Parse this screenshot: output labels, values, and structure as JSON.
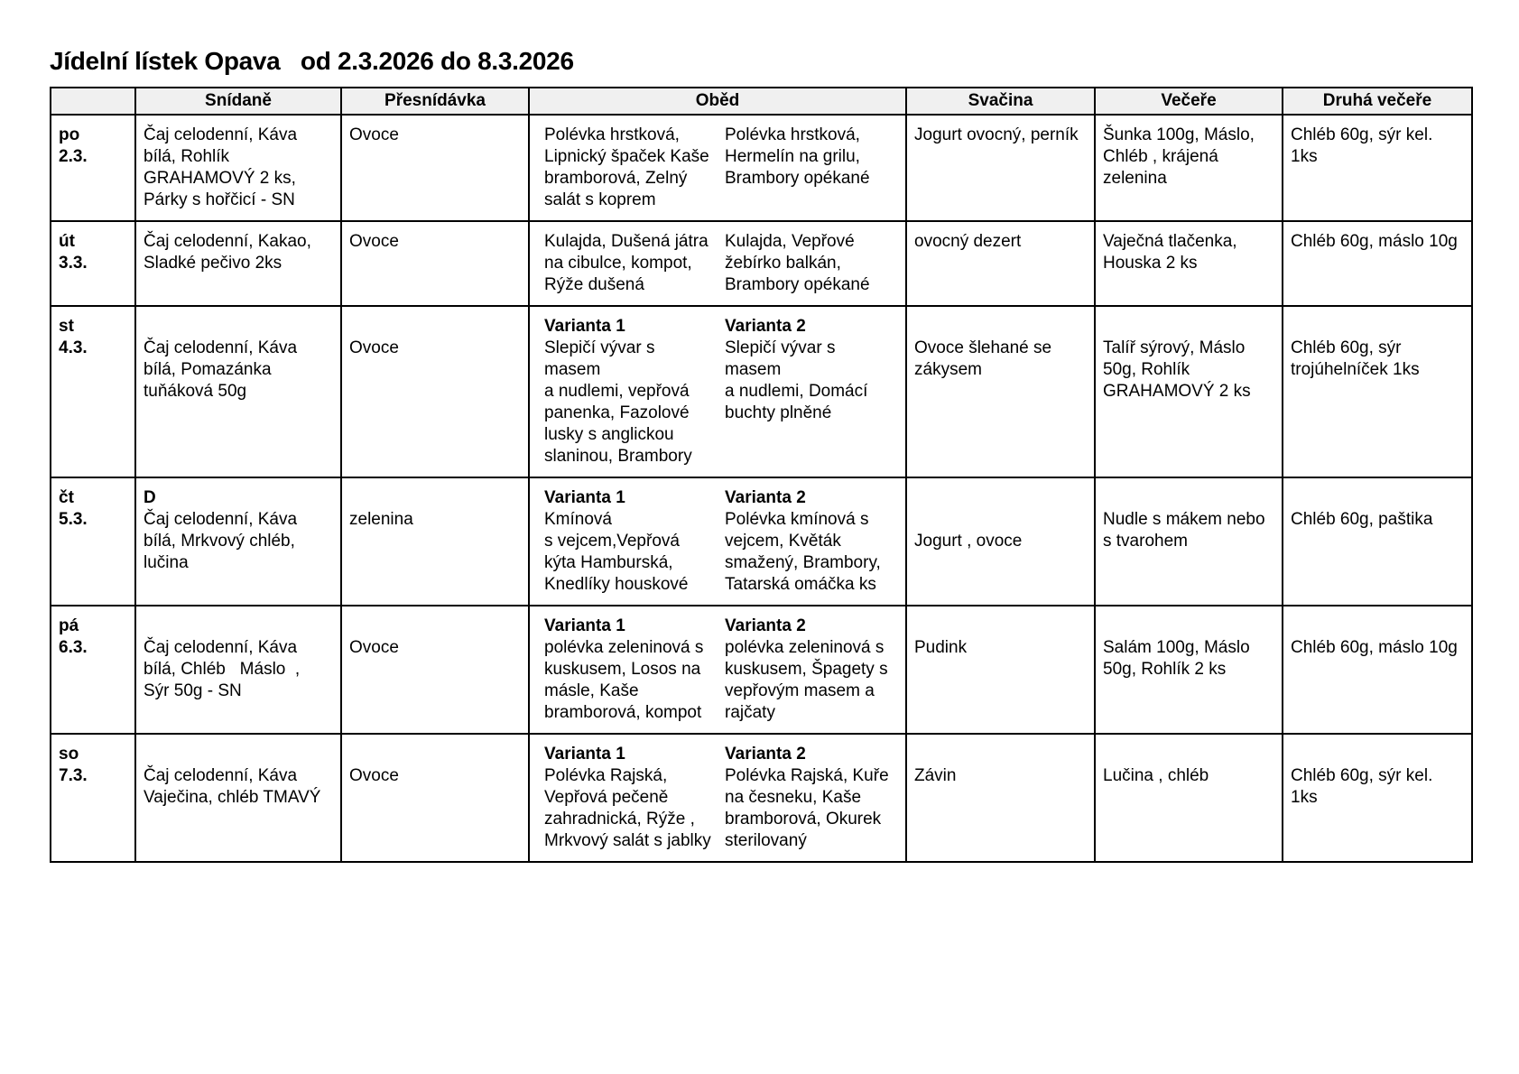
{
  "page": {
    "title": "Jídelní lístek Opava   od 2.3.2026 do 8.3.2026"
  },
  "colors": {
    "header_bg": "#f0f0f0",
    "border": "#000000",
    "text": "#000000",
    "page_bg": "#ffffff"
  },
  "table": {
    "columns": {
      "day": "",
      "snidane": "Snídaně",
      "presnidavka": "Přesnídávka",
      "obed": "Oběd",
      "svacina": "Svačina",
      "vecere": "Večeře",
      "druha_vecere": "Druhá večeře"
    },
    "rows": [
      {
        "day": {
          "abbr": "po",
          "date": "2.3."
        },
        "snidane": {
          "label": "",
          "text": "Čaj celodenní, Káva\nbílá, Rohlík\nGRAHAMOVÝ 2 ks,\nPárky s hořčicí - SN"
        },
        "presnidavka": "Ovoce",
        "obed": [
          {
            "label": "",
            "text": "Polévka hrstková,\nLipnický špaček Kaše\nbramborová, Zelný\nsalát s koprem"
          },
          {
            "label": "",
            "text": "Polévka hrstková,\nHermelín na grilu,\nBrambory opékané"
          }
        ],
        "svacina": "Jogurt ovocný, perník",
        "vecere": "Šunka 100g, Máslo,\nChléb , krájená\nzelenina",
        "druha_vecere": "Chléb 60g, sýr kel. 1ks"
      },
      {
        "day": {
          "abbr": "út",
          "date": "3.3."
        },
        "snidane": {
          "label": "",
          "text": "Čaj celodenní, Kakao,\nSladké pečivo 2ks"
        },
        "presnidavka": "Ovoce",
        "obed": [
          {
            "label": "",
            "text": "Kulajda, Dušená játra\nna cibulce, kompot,\nRýže dušená"
          },
          {
            "label": "",
            "text": "Kulajda, Vepřové\nžebírko balkán,\nBrambory opékané"
          }
        ],
        "svacina": "ovocný dezert",
        "vecere": "Vaječná tlačenka,\nHouska 2 ks",
        "druha_vecere": "Chléb 60g, máslo 10g"
      },
      {
        "day": {
          "abbr": "st",
          "date": "4.3."
        },
        "snidane": {
          "label": "",
          "text": "\nČaj celodenní, Káva\nbílá, Pomazánka\ntuňáková 50g"
        },
        "presnidavka": "\nOvoce",
        "obed": [
          {
            "label": "Varianta 1",
            "text": "Slepičí vývar s masem\na nudlemi, vepřová\npanenka, Fazolové\nlusky s anglickou\nslaninou, Brambory"
          },
          {
            "label": "Varianta 2",
            "text": "Slepičí vývar s masem\na nudlemi, Domácí\nbuchty plněné"
          }
        ],
        "svacina": "\nOvoce šlehané se\nzákysem",
        "vecere": "\nTalíř sýrový, Máslo\n50g, Rohlík\nGRAHAMOVÝ 2 ks",
        "druha_vecere": "\nChléb 60g, sýr\ntrojúhelníček 1ks"
      },
      {
        "day": {
          "abbr": "čt",
          "date": "5.3."
        },
        "snidane": {
          "label": "D",
          "text": "Čaj celodenní, Káva\nbílá, Mrkvový chléb,\nlučina"
        },
        "presnidavka": "\nzelenina",
        "obed": [
          {
            "label": "Varianta 1",
            "text": "Kmínová\ns vejcem,Vepřová\nkýta Hamburská,\nKnedlíky houskové"
          },
          {
            "label": "Varianta 2",
            "text": "Polévka kmínová s\nvejcem, Květák\nsmažený, Brambory,\nTatarská omáčka ks"
          }
        ],
        "svacina": "\n\nJogurt , ovoce",
        "vecere": "\nNudle s mákem nebo\ns tvarohem",
        "druha_vecere": "\nChléb 60g, paštika"
      },
      {
        "day": {
          "abbr": "pá",
          "date": "6.3."
        },
        "snidane": {
          "label": "",
          "text": "\nČaj celodenní, Káva\nbílá, Chléb   Máslo  ,\nSýr 50g - SN"
        },
        "presnidavka": "\nOvoce",
        "obed": [
          {
            "label": "Varianta 1",
            "text": "polévka zeleninová s\nkuskusem, Losos na\nmásle, Kaše\nbramborová, kompot"
          },
          {
            "label": "Varianta 2",
            "text": "polévka zeleninová s\nkuskusem, Špagety s\nvepřovým masem a\nrajčaty"
          }
        ],
        "svacina": "\nPudink",
        "vecere": "\nSalám 100g, Máslo\n50g, Rohlík 2 ks",
        "druha_vecere": "\nChléb 60g, máslo 10g"
      },
      {
        "day": {
          "abbr": "so",
          "date": "7.3."
        },
        "snidane": {
          "label": "",
          "text": "\nČaj celodenní, Káva\nVaječina, chléb TMAVÝ"
        },
        "presnidavka": "\nOvoce",
        "obed": [
          {
            "label": "Varianta 1",
            "text": "Polévka Rajská,\nVepřová pečeně\nzahradnická, Rýže ,\nMrkvový salát s jablky"
          },
          {
            "label": "Varianta 2",
            "text": "Polévka Rajská, Kuře\nna česneku, Kaše\nbramborová, Okurek\nsterilovaný"
          }
        ],
        "svacina": "\nZávin",
        "vecere": "\nLučina , chléb",
        "druha_vecere": "\nChléb 60g, sýr kel. 1ks"
      }
    ]
  }
}
